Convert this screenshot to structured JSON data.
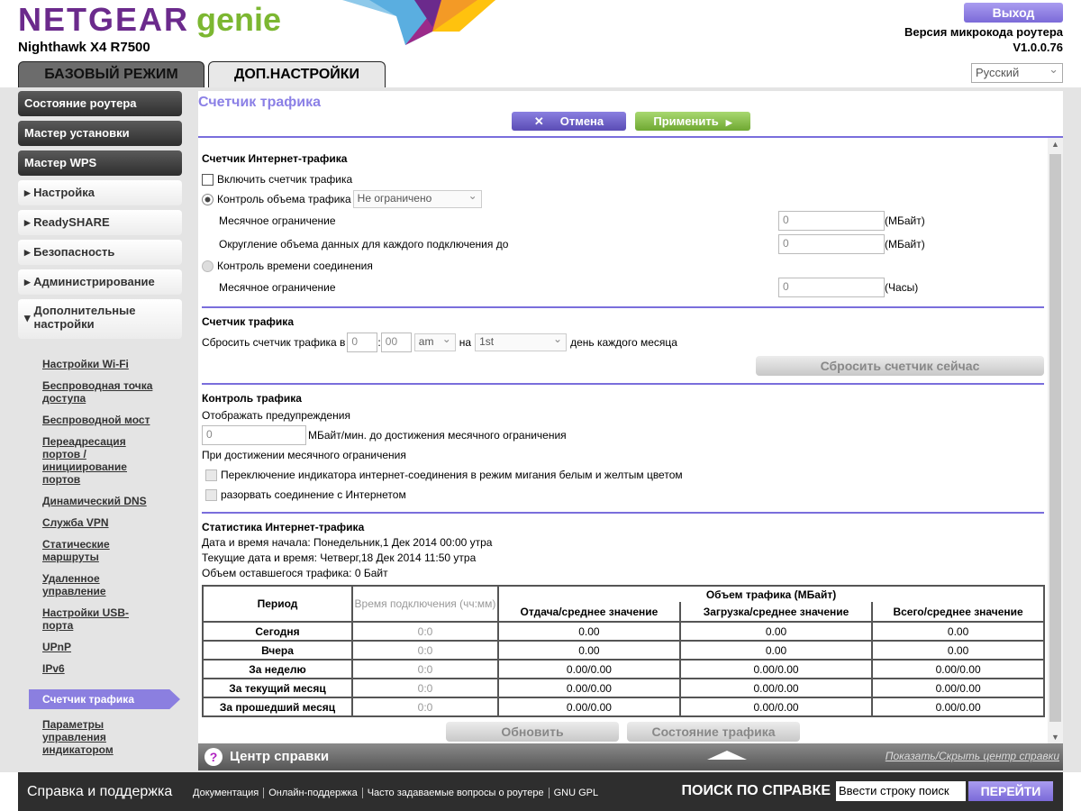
{
  "header": {
    "brand": "NETGEAR",
    "brand_sub": "genie",
    "model": "Nighthawk X4 R7500",
    "logout": "Выход",
    "fw_label": "Версия микрокода роутера",
    "fw_version": "V1.0.0.76",
    "language": "Русский"
  },
  "tabs": [
    {
      "label": "БАЗОВЫЙ РЕЖИМ"
    },
    {
      "label": "ДОП.НАСТРОЙКИ"
    }
  ],
  "sidebar": {
    "items": [
      "Состояние роутера",
      "Мастер установки",
      "Мастер WPS",
      "Настройка",
      "ReadySHARE",
      "Безопасность",
      "Администрирование",
      "Дополнительные настройки"
    ],
    "sub": [
      "Настройки Wi-Fi",
      "Беспроводная точка доступа",
      "Беспроводной мост",
      "Переадресация портов / инициирование портов",
      "Динамический DNS",
      "Служба VPN",
      "Статические маршруты",
      "Удаленное управление",
      "Настройки USB-порта",
      "UPnP",
      "IPv6",
      "Счетчик трафика",
      "Параметры управления индикатором"
    ]
  },
  "page": {
    "title": "Счетчик трафика",
    "cancel": "Отмена",
    "apply": "Применить"
  },
  "internet": {
    "heading": "Счетчик Интернет-трафика",
    "enable": "Включить счетчик трафика",
    "volume": "Контроль объема трафика",
    "volume_sel": "Не ограничено",
    "monthly": "Месячное ограничение",
    "monthly_val": "0",
    "unit_mb": "(МБайт)",
    "round": "Округление объема данных для каждого подключения до",
    "round_val": "0",
    "time": "Контроль времени соединения",
    "monthly2": "Месячное ограничение",
    "monthly2_val": "0",
    "unit_h": "(Часы)"
  },
  "counter": {
    "heading": "Счетчик трафика",
    "reset_label": "Сбросить счетчик трафика в",
    "hh": "0",
    "mm": "00",
    "ampm": "am",
    "on": "на",
    "day": "1st",
    "suffix": "день каждого месяца",
    "reset_now": "Сбросить счетчик сейчас"
  },
  "control": {
    "heading": "Контроль трафика",
    "warn": "Отображать предупреждения",
    "warn_val": "0",
    "warn_suffix": "МБайт/мин. до достижения месячного ограничения",
    "on_reach": "При достижении месячного ограничения",
    "opt1": "Переключение индикатора интернет-соединения в режим мигания белым и желтым цветом",
    "opt2": "разорвать соединение с Интернетом"
  },
  "stats": {
    "heading": "Статистика Интернет-трафика",
    "start": "Дата и время начала: Понедельник,1 Дек 2014 00:00 утра",
    "current": "Текущие дата и время: Четверг,18 Дек 2014 11:50 утра",
    "remaining": "Объем оставшегося трафика: 0 Байт",
    "h_period": "Период",
    "h_time": "Время подключения (чч:мм)",
    "h_volume": "Объем трафика (МБайт)",
    "h_up": "Отдача/среднее значение",
    "h_down": "Загрузка/среднее значение",
    "h_total": "Всего/среднее значение",
    "rows": [
      [
        "Сегодня",
        "0:0",
        "0.00",
        "0.00",
        "0.00"
      ],
      [
        "Вчера",
        "0:0",
        "0.00",
        "0.00",
        "0.00"
      ],
      [
        "За неделю",
        "0:0",
        "0.00/0.00",
        "0.00/0.00",
        "0.00/0.00"
      ],
      [
        "За текущий месяц",
        "0:0",
        "0.00/0.00",
        "0.00/0.00",
        "0.00/0.00"
      ],
      [
        "За прошедший месяц",
        "0:0",
        "0.00/0.00",
        "0.00/0.00",
        "0.00/0.00"
      ]
    ],
    "refresh": "Обновить",
    "status": "Состояние трафика"
  },
  "help": {
    "title": "Центр справки",
    "toggle": "Показать/Скрыть центр справки"
  },
  "footer": {
    "title": "Справка и поддержка",
    "links": [
      "Документация",
      "Онлайн-поддержка",
      "Часто задаваемые вопросы о роутере",
      "GNU GPL"
    ],
    "search_label": "ПОИСК ПО СПРАВКЕ",
    "search_placeholder": "Ввести строку поиск",
    "go": "ПЕРЕЙТИ"
  },
  "colors": {
    "accent": "#7a6edc",
    "brand": "#6b2a8c",
    "genie": "#7cb731"
  }
}
